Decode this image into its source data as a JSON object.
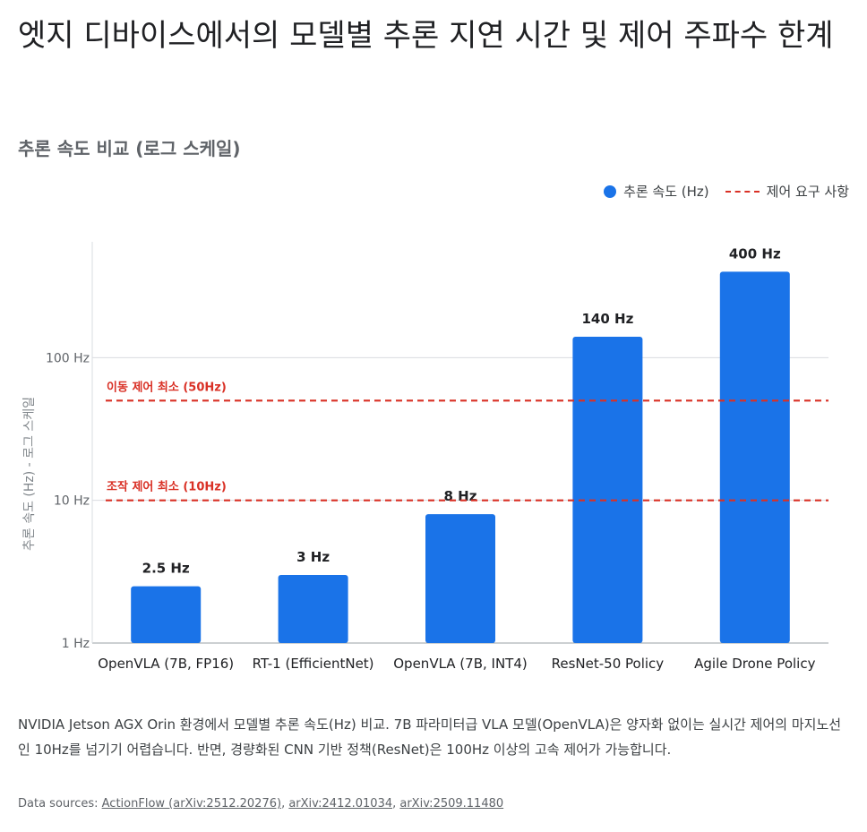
{
  "title": "엣지 디바이스에서의 모델별 추론 지연 시간 및 제어 주파수 한계",
  "subtitle": "추론 속도 비교 (로그 스케일)",
  "legend": {
    "series_label": "추론 속도 (Hz)",
    "threshold_label": "제어 요구 사항"
  },
  "description": "NVIDIA Jetson AGX Orin 환경에서 모델별 추론 속도(Hz) 비교. 7B 파라미터급 VLA 모델(OpenVLA)은 양자화 없이는 실시간 제어의 마지노선인 10Hz를 넘기기 어렵습니다. 반면, 경량화된 CNN 기반 정책(ResNet)은 100Hz 이상의 고속 제어가 가능합니다.",
  "sources": {
    "prefix": "Data sources: ",
    "links": [
      "ActionFlow (arXiv:2512.20276)",
      "arXiv:2412.01034",
      "arXiv:2509.11480"
    ]
  },
  "colors": {
    "bar": "#1a73e8",
    "threshold": "#d93025",
    "grid": "#dadce0"
  },
  "chart_data": {
    "type": "bar",
    "categories": [
      "OpenVLA (7B, FP16)",
      "RT-1 (EfficientNet)",
      "OpenVLA (7B, INT4)",
      "ResNet-50 Policy",
      "Agile Drone Policy"
    ],
    "series": [
      {
        "name": "추론 속도 (Hz)",
        "values": [
          2.5,
          3,
          8,
          140,
          400
        ]
      }
    ],
    "data_labels": [
      "2.5 Hz",
      "3 Hz",
      "8 Hz",
      "140 Hz",
      "400 Hz"
    ],
    "ylabel": "추론 속도 (Hz) - 로그 스케일",
    "yscale": "log",
    "ylim": [
      1,
      1000
    ],
    "yticks": [
      1,
      10,
      100
    ],
    "ytick_labels": [
      "1 Hz",
      "10 Hz",
      "100 Hz"
    ],
    "thresholds": [
      {
        "value": 50,
        "label": "이동 제어 최소 (50Hz)"
      },
      {
        "value": 10,
        "label": "조작 제어 최소 (10Hz)"
      }
    ],
    "legend_position": "top-right",
    "grid": true
  }
}
